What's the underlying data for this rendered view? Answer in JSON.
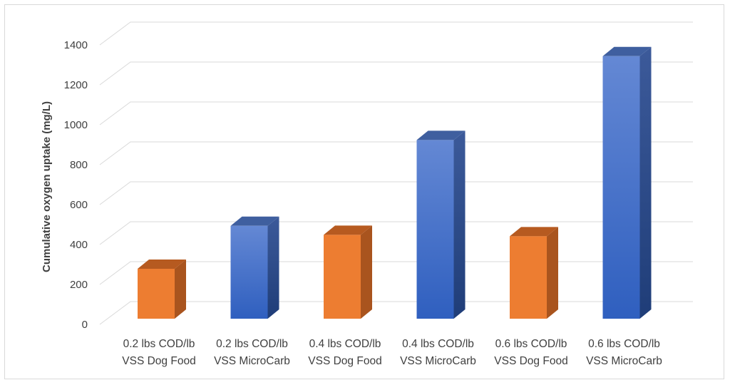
{
  "chart_data": {
    "type": "bar",
    "style": "3d-column",
    "categories": [
      [
        "0.2 lbs COD/lb",
        "VSS Dog Food"
      ],
      [
        "0.2 lbs COD/lb",
        "VSS MicroCarb"
      ],
      [
        "0.4 lbs COD/lb",
        "VSS Dog Food"
      ],
      [
        "0.4 lbs COD/lb",
        "VSS MicroCarb"
      ],
      [
        "0.6 lbs COD/lb",
        "VSS Dog Food"
      ],
      [
        "0.6 lbs COD/lb",
        "VSS MicroCarb"
      ]
    ],
    "values": [
      250,
      465,
      420,
      895,
      413,
      1315
    ],
    "bar_colors": [
      "#ED7D31",
      "#4472C4",
      "#ED7D31",
      "#4472C4",
      "#ED7D31",
      "#4472C4"
    ],
    "title": "",
    "xlabel": "",
    "ylabel": "Cumulative oxygen uptake (mg/L)",
    "ylim": [
      0,
      1400
    ],
    "yticks": [
      0,
      200,
      400,
      600,
      800,
      1000,
      1200,
      1400
    ],
    "grid": true,
    "legend": "none"
  }
}
